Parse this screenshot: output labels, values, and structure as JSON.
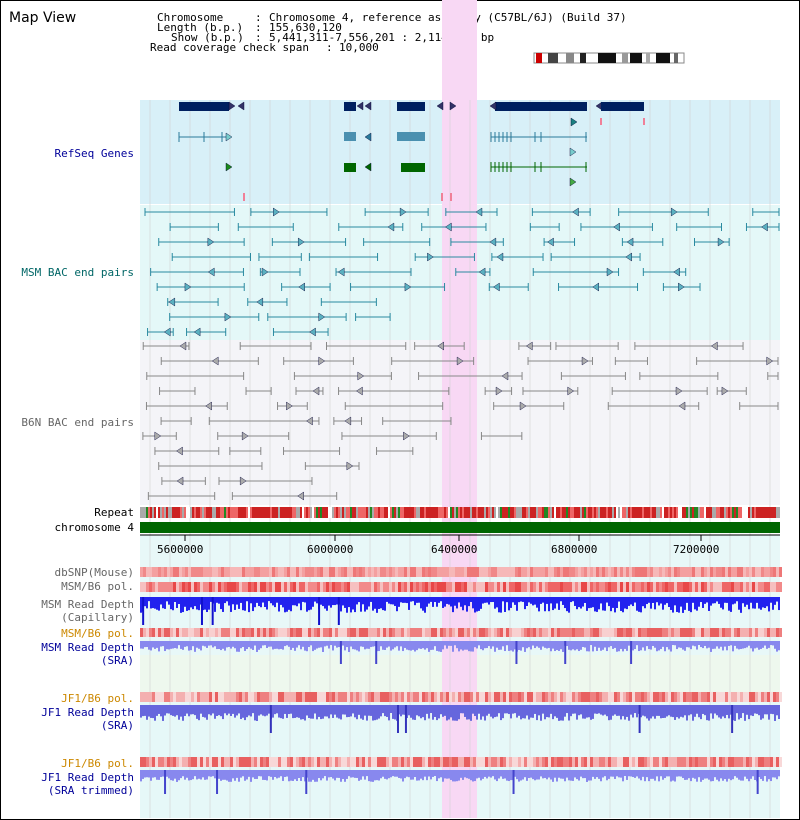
{
  "app_title": "Map View",
  "info": {
    "chromosome_label": "Chromosome",
    "chromosome_value": "Chromosome 4, reference assembly (C57BL/6J) (Build 37)",
    "length_label": "Length (b.p.)",
    "length_value": "155,630,120",
    "show_label": "Show (b.p.)",
    "show_value": "5,441,311-7,556,201 : 2,114,891 bp",
    "coverage_label": "Read coverage check span",
    "coverage_value": "10,000"
  },
  "tracks": {
    "refseq": "RefSeq Genes",
    "msm_bac": "MSM BAC end pairs",
    "b6n_bac": "B6N BAC end pairs",
    "repeat": "Repeat",
    "chromosome": "chromosome 4",
    "dbsnp": "dbSNP(Mouse)",
    "msm_b6_pol_1": "MSM/B6 pol.",
    "msm_read_depth_cap": "MSM Read Depth\n(Capillary)",
    "msm_b6_pol_2": "MSM/B6 pol.",
    "msm_read_depth_sra": "MSM Read Depth\n(SRA)",
    "jf1_b6_pol_1": "JF1/B6 pol.",
    "jf1_read_depth_sra": "JF1 Read Depth\n(SRA)",
    "jf1_b6_pol_2": "JF1/B6 pol.",
    "jf1_read_depth_trim": "JF1 Read Depth\n(SRA trimmed)"
  },
  "axis_ticks": [
    "5600000",
    "6000000",
    "6400000",
    "6800000",
    "7200000"
  ],
  "colors": {
    "track_name_blue": "#000099",
    "track_name_teal": "#006666",
    "track_name_gray": "#666666",
    "track_name_orange": "#cc8800",
    "highlight": "#f8d8f4",
    "refseq_bg": "#d8f0f8",
    "msm_bg": "#e4f8f8",
    "b6n_bg": "#f4f4f8",
    "gene_dark": "#002060",
    "chromosome_green": "#006600"
  }
}
